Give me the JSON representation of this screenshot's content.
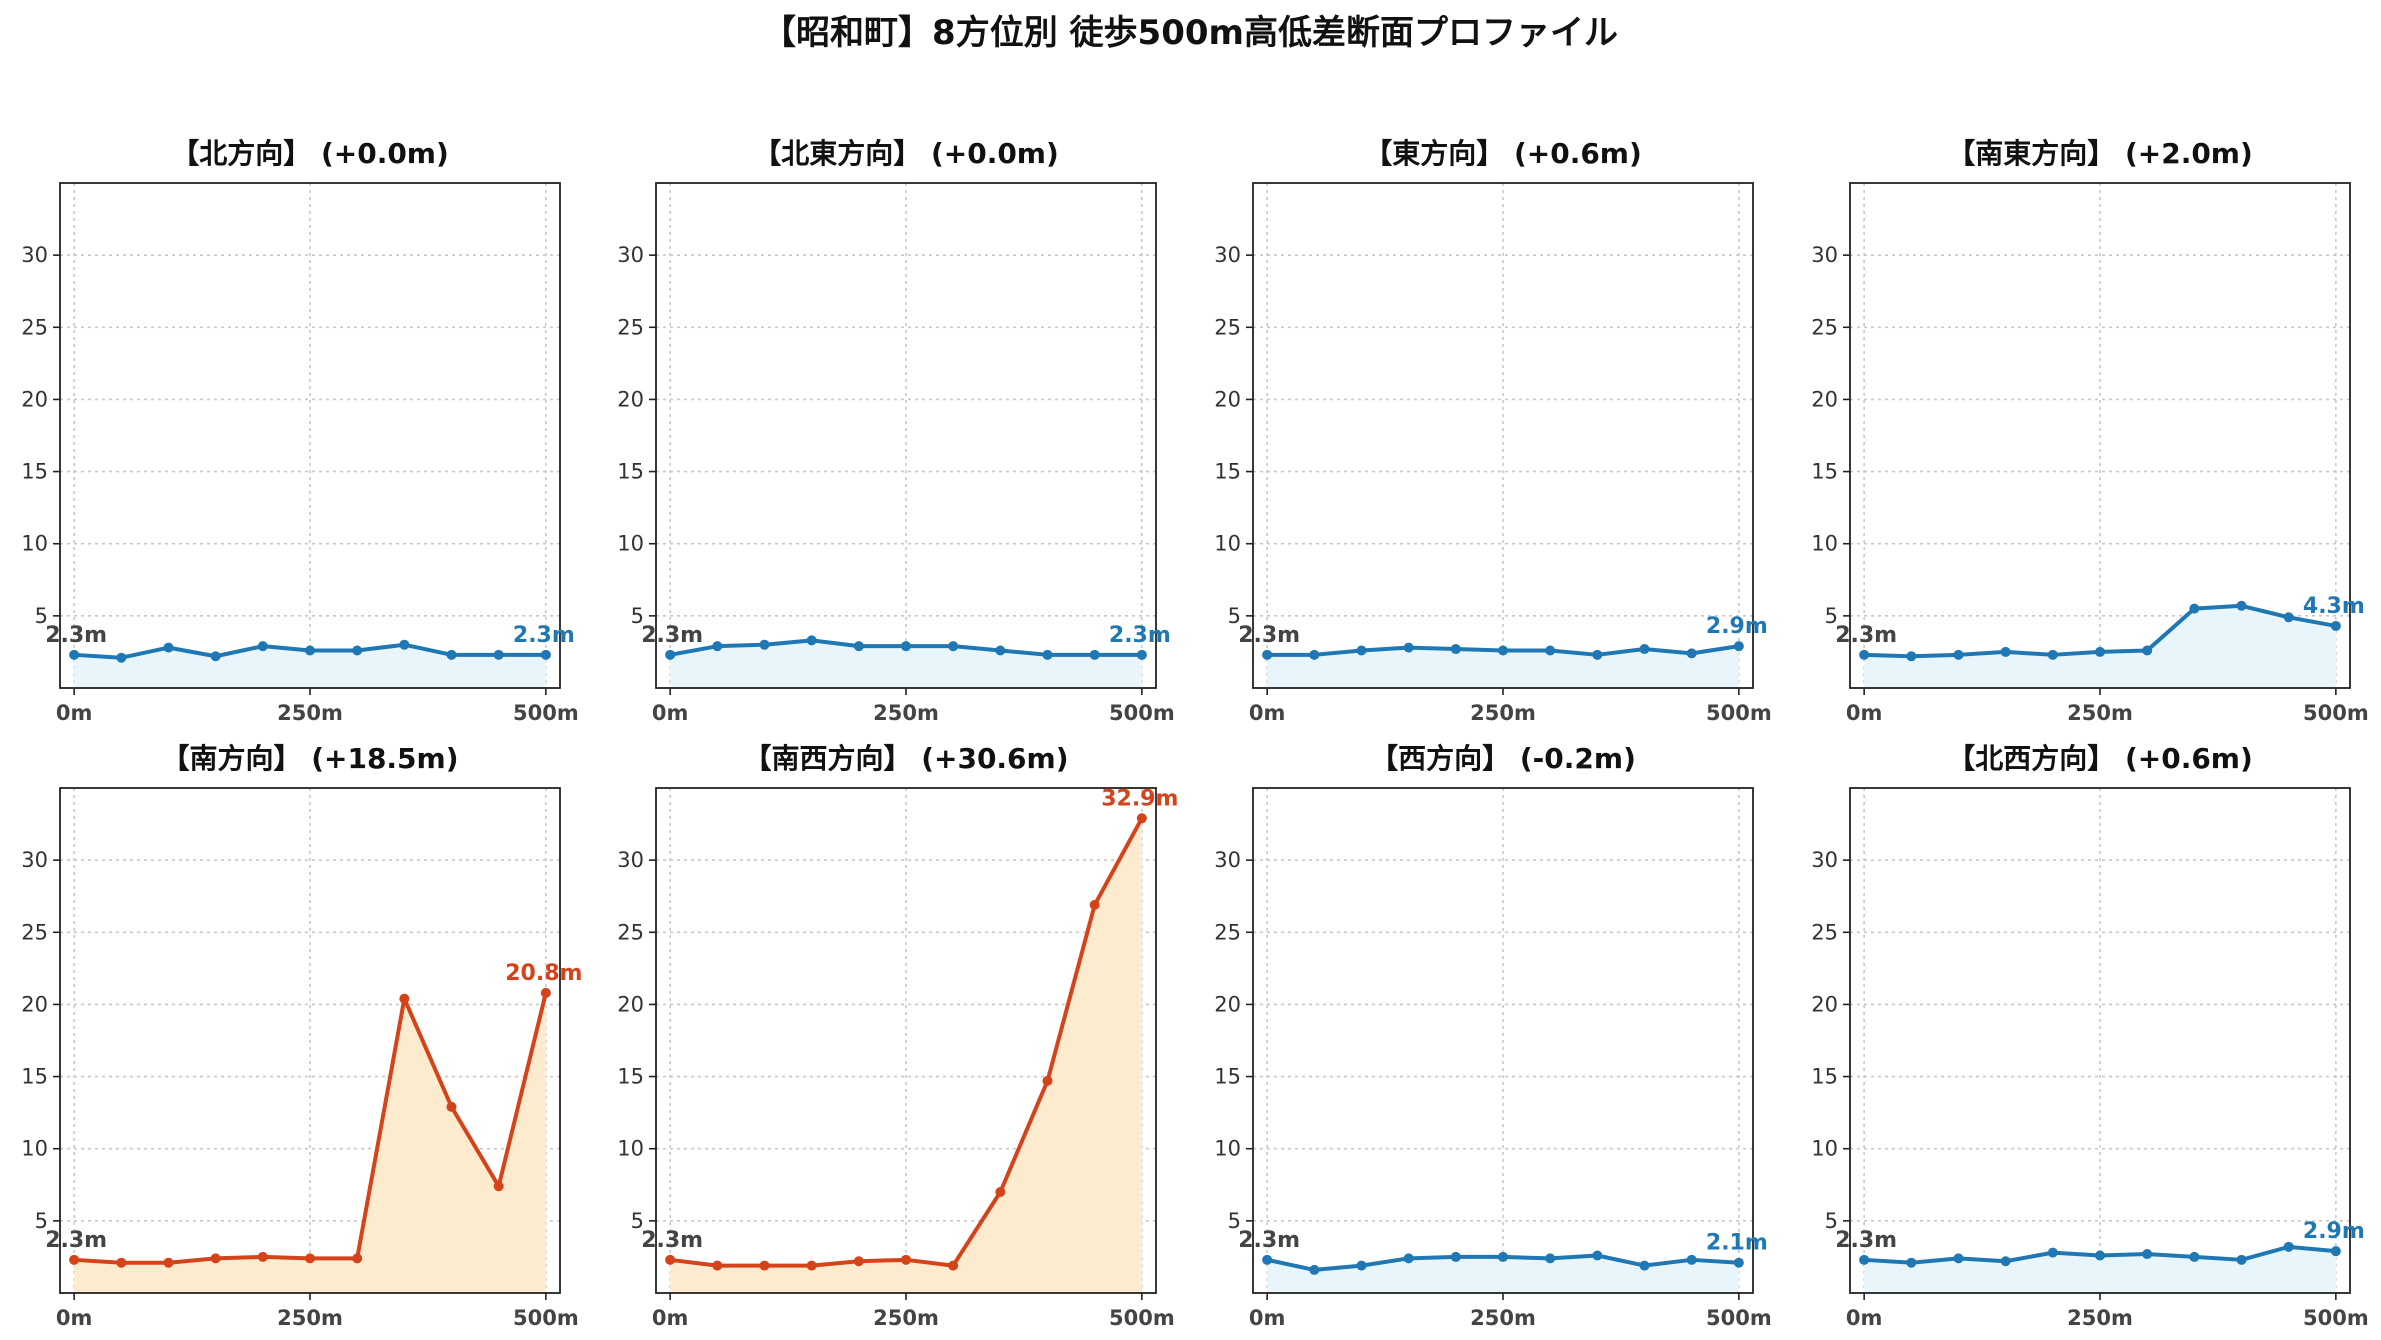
{
  "suptitle": "【昭和町】8方位別 徒歩500m高低差断面プロファイル",
  "colors": {
    "flat_line": "#1f77b4",
    "flat_fill": "#e8f6fc",
    "steep_line": "#d4431a",
    "steep_fill": "#fdebd0"
  },
  "chart_data": [
    {
      "type": "area",
      "title": "【北方向】 (+0.0m)",
      "x": [
        0,
        50,
        100,
        150,
        200,
        250,
        300,
        350,
        400,
        450,
        500
      ],
      "xticklabels": [
        "0m",
        "250m",
        "500m"
      ],
      "values": [
        2.3,
        2.1,
        2.8,
        2.2,
        2.9,
        2.6,
        2.6,
        3.0,
        2.3,
        2.3,
        2.3
      ],
      "ylim": [
        0,
        35
      ],
      "yticks": [
        5,
        10,
        15,
        20,
        25,
        30
      ],
      "start_label": "2.3m",
      "end_label": "2.3m",
      "style": "flat",
      "grid": true
    },
    {
      "type": "area",
      "title": "【北東方向】 (+0.0m)",
      "x": [
        0,
        50,
        100,
        150,
        200,
        250,
        300,
        350,
        400,
        450,
        500
      ],
      "xticklabels": [
        "0m",
        "250m",
        "500m"
      ],
      "values": [
        2.3,
        2.9,
        3.0,
        3.3,
        2.9,
        2.9,
        2.9,
        2.6,
        2.3,
        2.3,
        2.3
      ],
      "ylim": [
        0,
        35
      ],
      "yticks": [
        5,
        10,
        15,
        20,
        25,
        30
      ],
      "start_label": "2.3m",
      "end_label": "2.3m",
      "style": "flat",
      "grid": true
    },
    {
      "type": "area",
      "title": "【東方向】 (+0.6m)",
      "x": [
        0,
        50,
        100,
        150,
        200,
        250,
        300,
        350,
        400,
        450,
        500
      ],
      "xticklabels": [
        "0m",
        "250m",
        "500m"
      ],
      "values": [
        2.3,
        2.3,
        2.6,
        2.8,
        2.7,
        2.6,
        2.6,
        2.3,
        2.7,
        2.4,
        2.9
      ],
      "ylim": [
        0,
        35
      ],
      "yticks": [
        5,
        10,
        15,
        20,
        25,
        30
      ],
      "start_label": "2.3m",
      "end_label": "2.9m",
      "style": "flat",
      "grid": true
    },
    {
      "type": "area",
      "title": "【南東方向】 (+2.0m)",
      "x": [
        0,
        50,
        100,
        150,
        200,
        250,
        300,
        350,
        400,
        450,
        500
      ],
      "xticklabels": [
        "0m",
        "250m",
        "500m"
      ],
      "values": [
        2.3,
        2.2,
        2.3,
        2.5,
        2.3,
        2.5,
        2.6,
        5.5,
        5.7,
        4.9,
        4.3
      ],
      "ylim": [
        0,
        35
      ],
      "yticks": [
        5,
        10,
        15,
        20,
        25,
        30
      ],
      "start_label": "2.3m",
      "end_label": "4.3m",
      "style": "flat",
      "grid": true
    },
    {
      "type": "area",
      "title": "【南方向】 (+18.5m)",
      "x": [
        0,
        50,
        100,
        150,
        200,
        250,
        300,
        350,
        400,
        450,
        500
      ],
      "xticklabels": [
        "0m",
        "250m",
        "500m"
      ],
      "values": [
        2.3,
        2.1,
        2.1,
        2.4,
        2.5,
        2.4,
        2.4,
        20.4,
        12.9,
        7.4,
        20.8
      ],
      "ylim": [
        0,
        35
      ],
      "yticks": [
        5,
        10,
        15,
        20,
        25,
        30
      ],
      "start_label": "2.3m",
      "end_label": "20.8m",
      "style": "steep",
      "grid": true
    },
    {
      "type": "area",
      "title": "【南西方向】 (+30.6m)",
      "x": [
        0,
        50,
        100,
        150,
        200,
        250,
        300,
        350,
        400,
        450,
        500
      ],
      "xticklabels": [
        "0m",
        "250m",
        "500m"
      ],
      "values": [
        2.3,
        1.9,
        1.9,
        1.9,
        2.2,
        2.3,
        1.9,
        7.0,
        14.7,
        26.9,
        32.9
      ],
      "ylim": [
        0,
        35
      ],
      "yticks": [
        5,
        10,
        15,
        20,
        25,
        30
      ],
      "start_label": "2.3m",
      "end_label": "32.9m",
      "style": "steep",
      "grid": true
    },
    {
      "type": "area",
      "title": "【西方向】 (-0.2m)",
      "x": [
        0,
        50,
        100,
        150,
        200,
        250,
        300,
        350,
        400,
        450,
        500
      ],
      "xticklabels": [
        "0m",
        "250m",
        "500m"
      ],
      "values": [
        2.3,
        1.6,
        1.9,
        2.4,
        2.5,
        2.5,
        2.4,
        2.6,
        1.9,
        2.3,
        2.1
      ],
      "ylim": [
        0,
        35
      ],
      "yticks": [
        5,
        10,
        15,
        20,
        25,
        30
      ],
      "start_label": "2.3m",
      "end_label": "2.1m",
      "style": "flat",
      "grid": true
    },
    {
      "type": "area",
      "title": "【北西方向】 (+0.6m)",
      "x": [
        0,
        50,
        100,
        150,
        200,
        250,
        300,
        350,
        400,
        450,
        500
      ],
      "xticklabels": [
        "0m",
        "250m",
        "500m"
      ],
      "values": [
        2.3,
        2.1,
        2.4,
        2.2,
        2.8,
        2.6,
        2.7,
        2.5,
        2.3,
        3.2,
        2.9
      ],
      "ylim": [
        0,
        35
      ],
      "yticks": [
        5,
        10,
        15,
        20,
        25,
        30
      ],
      "start_label": "2.3m",
      "end_label": "2.9m",
      "style": "flat",
      "grid": true
    }
  ]
}
